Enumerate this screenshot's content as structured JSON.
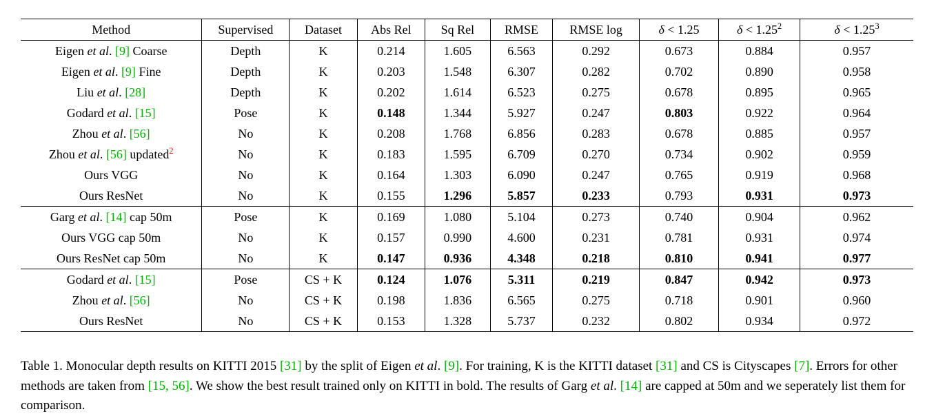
{
  "accent_colors": {
    "citation_green": "#00b400",
    "footnote_red": "#ee0000",
    "text_black": "#000000",
    "background": "#ffffff"
  },
  "table": {
    "headers": [
      {
        "id": "method",
        "segs": [
          {
            "t": "Method",
            "s": "n"
          }
        ]
      },
      {
        "id": "supervised",
        "segs": [
          {
            "t": "Supervised",
            "s": "n"
          }
        ]
      },
      {
        "id": "dataset",
        "segs": [
          {
            "t": "Dataset",
            "s": "n"
          }
        ]
      },
      {
        "id": "abs-rel",
        "segs": [
          {
            "t": "Abs Rel",
            "s": "n"
          }
        ]
      },
      {
        "id": "sq-rel",
        "segs": [
          {
            "t": "Sq Rel",
            "s": "n"
          }
        ]
      },
      {
        "id": "rmse",
        "segs": [
          {
            "t": "RMSE",
            "s": "n"
          }
        ]
      },
      {
        "id": "rmse-log",
        "segs": [
          {
            "t": "RMSE log",
            "s": "n"
          }
        ]
      },
      {
        "id": "delta-1",
        "segs": [
          {
            "t": "δ",
            "s": "i"
          },
          {
            "t": " < 1.25",
            "s": "n"
          }
        ]
      },
      {
        "id": "delta-2",
        "segs": [
          {
            "t": "δ",
            "s": "i"
          },
          {
            "t": " < 1.25",
            "s": "n"
          },
          {
            "t": "2",
            "s": "s"
          }
        ]
      },
      {
        "id": "delta-3",
        "segs": [
          {
            "t": "δ",
            "s": "i"
          },
          {
            "t": " < 1.25",
            "s": "n"
          },
          {
            "t": "3",
            "s": "s"
          }
        ]
      }
    ],
    "col_widths_percent": [
      20.3,
      9.8,
      7.6,
      7.6,
      7.3,
      7.0,
      9.7,
      8.9,
      9.1,
      12.7
    ],
    "sections": [
      {
        "rows": [
          {
            "method": [
              {
                "t": "Eigen ",
                "s": "n"
              },
              {
                "t": "et al",
                "s": "i"
              },
              {
                "t": ". ",
                "s": "n"
              },
              {
                "t": "[9]",
                "s": "g"
              },
              {
                "t": " Coarse",
                "s": "n"
              }
            ],
            "supervised": "Depth",
            "dataset": "K",
            "metrics": [
              {
                "v": "0.214",
                "b": false
              },
              {
                "v": "1.605",
                "b": false
              },
              {
                "v": "6.563",
                "b": false
              },
              {
                "v": "0.292",
                "b": false
              },
              {
                "v": "0.673",
                "b": false
              },
              {
                "v": "0.884",
                "b": false
              },
              {
                "v": "0.957",
                "b": false
              }
            ]
          },
          {
            "method": [
              {
                "t": "Eigen ",
                "s": "n"
              },
              {
                "t": "et al",
                "s": "i"
              },
              {
                "t": ". ",
                "s": "n"
              },
              {
                "t": "[9]",
                "s": "g"
              },
              {
                "t": " Fine",
                "s": "n"
              }
            ],
            "supervised": "Depth",
            "dataset": "K",
            "metrics": [
              {
                "v": "0.203",
                "b": false
              },
              {
                "v": "1.548",
                "b": false
              },
              {
                "v": "6.307",
                "b": false
              },
              {
                "v": "0.282",
                "b": false
              },
              {
                "v": "0.702",
                "b": false
              },
              {
                "v": "0.890",
                "b": false
              },
              {
                "v": "0.958",
                "b": false
              }
            ]
          },
          {
            "method": [
              {
                "t": "Liu ",
                "s": "n"
              },
              {
                "t": "et al",
                "s": "i"
              },
              {
                "t": ". ",
                "s": "n"
              },
              {
                "t": "[28]",
                "s": "g"
              }
            ],
            "supervised": "Depth",
            "dataset": "K",
            "metrics": [
              {
                "v": "0.202",
                "b": false
              },
              {
                "v": "1.614",
                "b": false
              },
              {
                "v": "6.523",
                "b": false
              },
              {
                "v": "0.275",
                "b": false
              },
              {
                "v": "0.678",
                "b": false
              },
              {
                "v": "0.895",
                "b": false
              },
              {
                "v": "0.965",
                "b": false
              }
            ]
          },
          {
            "method": [
              {
                "t": "Godard ",
                "s": "n"
              },
              {
                "t": "et al",
                "s": "i"
              },
              {
                "t": ". ",
                "s": "n"
              },
              {
                "t": "[15]",
                "s": "g"
              }
            ],
            "supervised": "Pose",
            "dataset": "K",
            "metrics": [
              {
                "v": "0.148",
                "b": true
              },
              {
                "v": "1.344",
                "b": false
              },
              {
                "v": "5.927",
                "b": false
              },
              {
                "v": "0.247",
                "b": false
              },
              {
                "v": "0.803",
                "b": true
              },
              {
                "v": "0.922",
                "b": false
              },
              {
                "v": "0.964",
                "b": false
              }
            ]
          },
          {
            "method": [
              {
                "t": "Zhou ",
                "s": "n"
              },
              {
                "t": "et al",
                "s": "i"
              },
              {
                "t": ". ",
                "s": "n"
              },
              {
                "t": "[56]",
                "s": "g"
              }
            ],
            "supervised": "No",
            "dataset": "K",
            "metrics": [
              {
                "v": "0.208",
                "b": false
              },
              {
                "v": "1.768",
                "b": false
              },
              {
                "v": "6.856",
                "b": false
              },
              {
                "v": "0.283",
                "b": false
              },
              {
                "v": "0.678",
                "b": false
              },
              {
                "v": "0.885",
                "b": false
              },
              {
                "v": "0.957",
                "b": false
              }
            ]
          },
          {
            "method": [
              {
                "t": "Zhou ",
                "s": "n"
              },
              {
                "t": "et al",
                "s": "i"
              },
              {
                "t": ". ",
                "s": "n"
              },
              {
                "t": "[56]",
                "s": "g"
              },
              {
                "t": " updated",
                "s": "n"
              },
              {
                "t": "2",
                "s": "r"
              }
            ],
            "supervised": "No",
            "dataset": "K",
            "metrics": [
              {
                "v": "0.183",
                "b": false
              },
              {
                "v": "1.595",
                "b": false
              },
              {
                "v": "6.709",
                "b": false
              },
              {
                "v": "0.270",
                "b": false
              },
              {
                "v": "0.734",
                "b": false
              },
              {
                "v": "0.902",
                "b": false
              },
              {
                "v": "0.959",
                "b": false
              }
            ]
          },
          {
            "method": [
              {
                "t": "Ours VGG",
                "s": "n"
              }
            ],
            "supervised": "No",
            "dataset": "K",
            "metrics": [
              {
                "v": "0.164",
                "b": false
              },
              {
                "v": "1.303",
                "b": false
              },
              {
                "v": "6.090",
                "b": false
              },
              {
                "v": "0.247",
                "b": false
              },
              {
                "v": "0.765",
                "b": false
              },
              {
                "v": "0.919",
                "b": false
              },
              {
                "v": "0.968",
                "b": false
              }
            ]
          },
          {
            "method": [
              {
                "t": "Ours ResNet",
                "s": "n"
              }
            ],
            "supervised": "No",
            "dataset": "K",
            "metrics": [
              {
                "v": "0.155",
                "b": false
              },
              {
                "v": "1.296",
                "b": true
              },
              {
                "v": "5.857",
                "b": true
              },
              {
                "v": "0.233",
                "b": true
              },
              {
                "v": "0.793",
                "b": false
              },
              {
                "v": "0.931",
                "b": true
              },
              {
                "v": "0.973",
                "b": true
              }
            ]
          }
        ]
      },
      {
        "rows": [
          {
            "method": [
              {
                "t": "Garg ",
                "s": "n"
              },
              {
                "t": "et al",
                "s": "i"
              },
              {
                "t": ". ",
                "s": "n"
              },
              {
                "t": "[14]",
                "s": "g"
              },
              {
                "t": " cap 50m",
                "s": "n"
              }
            ],
            "supervised": "Pose",
            "dataset": "K",
            "metrics": [
              {
                "v": "0.169",
                "b": false
              },
              {
                "v": "1.080",
                "b": false
              },
              {
                "v": "5.104",
                "b": false
              },
              {
                "v": "0.273",
                "b": false
              },
              {
                "v": "0.740",
                "b": false
              },
              {
                "v": "0.904",
                "b": false
              },
              {
                "v": "0.962",
                "b": false
              }
            ]
          },
          {
            "method": [
              {
                "t": "Ours VGG cap 50m",
                "s": "n"
              }
            ],
            "supervised": "No",
            "dataset": "K",
            "metrics": [
              {
                "v": "0.157",
                "b": false
              },
              {
                "v": "0.990",
                "b": false
              },
              {
                "v": "4.600",
                "b": false
              },
              {
                "v": "0.231",
                "b": false
              },
              {
                "v": "0.781",
                "b": false
              },
              {
                "v": "0.931",
                "b": false
              },
              {
                "v": "0.974",
                "b": false
              }
            ]
          },
          {
            "method": [
              {
                "t": "Ours ResNet cap 50m",
                "s": "n"
              }
            ],
            "supervised": "No",
            "dataset": "K",
            "metrics": [
              {
                "v": "0.147",
                "b": true
              },
              {
                "v": "0.936",
                "b": true
              },
              {
                "v": "4.348",
                "b": true
              },
              {
                "v": "0.218",
                "b": true
              },
              {
                "v": "0.810",
                "b": true
              },
              {
                "v": "0.941",
                "b": true
              },
              {
                "v": "0.977",
                "b": true
              }
            ]
          }
        ]
      },
      {
        "rows": [
          {
            "method": [
              {
                "t": "Godard ",
                "s": "n"
              },
              {
                "t": "et al",
                "s": "i"
              },
              {
                "t": ". ",
                "s": "n"
              },
              {
                "t": "[15]",
                "s": "g"
              }
            ],
            "supervised": "Pose",
            "dataset": "CS + K",
            "metrics": [
              {
                "v": "0.124",
                "b": true
              },
              {
                "v": "1.076",
                "b": true
              },
              {
                "v": "5.311",
                "b": true
              },
              {
                "v": "0.219",
                "b": true
              },
              {
                "v": "0.847",
                "b": true
              },
              {
                "v": "0.942",
                "b": true
              },
              {
                "v": "0.973",
                "b": true
              }
            ]
          },
          {
            "method": [
              {
                "t": "Zhou ",
                "s": "n"
              },
              {
                "t": "et al",
                "s": "i"
              },
              {
                "t": ". ",
                "s": "n"
              },
              {
                "t": "[56]",
                "s": "g"
              }
            ],
            "supervised": "No",
            "dataset": "CS + K",
            "metrics": [
              {
                "v": "0.198",
                "b": false
              },
              {
                "v": "1.836",
                "b": false
              },
              {
                "v": "6.565",
                "b": false
              },
              {
                "v": "0.275",
                "b": false
              },
              {
                "v": "0.718",
                "b": false
              },
              {
                "v": "0.901",
                "b": false
              },
              {
                "v": "0.960",
                "b": false
              }
            ]
          },
          {
            "method": [
              {
                "t": "Ours ResNet",
                "s": "n"
              }
            ],
            "supervised": "No",
            "dataset": "CS + K",
            "metrics": [
              {
                "v": "0.153",
                "b": false
              },
              {
                "v": "1.328",
                "b": false
              },
              {
                "v": "5.737",
                "b": false
              },
              {
                "v": "0.232",
                "b": false
              },
              {
                "v": "0.802",
                "b": false
              },
              {
                "v": "0.934",
                "b": false
              },
              {
                "v": "0.972",
                "b": false
              }
            ]
          }
        ]
      }
    ]
  },
  "caption": {
    "segs": [
      {
        "t": "Table 1. Monocular depth results on KITTI 2015 ",
        "s": "n"
      },
      {
        "t": "[31]",
        "s": "g"
      },
      {
        "t": " by the split of Eigen ",
        "s": "n"
      },
      {
        "t": "et al",
        "s": "i"
      },
      {
        "t": ". ",
        "s": "n"
      },
      {
        "t": "[9]",
        "s": "g"
      },
      {
        "t": ". For training, K is the KITTI dataset ",
        "s": "n"
      },
      {
        "t": "[31]",
        "s": "g"
      },
      {
        "t": " and CS is Cityscapes ",
        "s": "n"
      },
      {
        "t": "[7]",
        "s": "g"
      },
      {
        "t": ". Errors for other methods are taken from ",
        "s": "n"
      },
      {
        "t": "[15, 56]",
        "s": "g"
      },
      {
        "t": ". We show the best result trained only on KITTI in bold. The results of Garg ",
        "s": "n"
      },
      {
        "t": "et al",
        "s": "i"
      },
      {
        "t": ". ",
        "s": "n"
      },
      {
        "t": "[14]",
        "s": "g"
      },
      {
        "t": " are capped at 50m and we seperately list them for comparison.",
        "s": "n"
      }
    ]
  }
}
